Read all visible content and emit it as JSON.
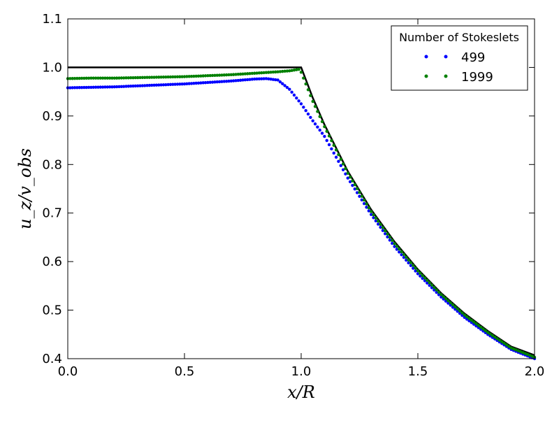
{
  "chart_data": {
    "type": "scatter",
    "title": "",
    "xlabel": "x/R",
    "ylabel": "u_z/v_obs",
    "xlim": [
      0.0,
      2.0
    ],
    "ylim": [
      0.4,
      1.1
    ],
    "grid": false,
    "x_ticks": [
      "0.0",
      "0.5",
      "1.0",
      "1.5",
      "2.0"
    ],
    "y_ticks": [
      "0.4",
      "0.5",
      "0.6",
      "0.7",
      "0.8",
      "0.9",
      "1.0",
      "1.1"
    ],
    "legend": {
      "title": "Number of Stokeslets",
      "placement": "top-right",
      "entries": [
        "499",
        "1999"
      ]
    },
    "reference_curve": {
      "description": "",
      "color": "#000000",
      "x": [
        0.0,
        0.1,
        0.2,
        0.3,
        0.4,
        0.5,
        0.6,
        0.7,
        0.8,
        0.9,
        1.0,
        1.05,
        1.1,
        1.2,
        1.3,
        1.4,
        1.5,
        1.6,
        1.7,
        1.8,
        1.9,
        2.0
      ],
      "y": [
        1.0,
        1.0,
        1.0,
        1.0,
        1.0,
        1.0,
        1.0,
        1.0,
        1.0,
        1.0,
        1.0,
        0.937,
        0.882,
        0.786,
        0.707,
        0.641,
        0.584,
        0.535,
        0.493,
        0.457,
        0.425,
        0.407
      ]
    },
    "series": [
      {
        "name": "499",
        "color": "#0000ff",
        "x": [
          0.0,
          0.1,
          0.2,
          0.3,
          0.4,
          0.5,
          0.6,
          0.7,
          0.8,
          0.85,
          0.9,
          0.95,
          1.0,
          1.05,
          1.1,
          1.2,
          1.3,
          1.4,
          1.5,
          1.6,
          1.7,
          1.8,
          1.9,
          2.0
        ],
        "y": [
          0.958,
          0.959,
          0.96,
          0.962,
          0.964,
          0.966,
          0.969,
          0.972,
          0.976,
          0.977,
          0.974,
          0.955,
          0.925,
          0.89,
          0.858,
          0.772,
          0.697,
          0.631,
          0.575,
          0.527,
          0.485,
          0.45,
          0.419,
          0.4
        ]
      },
      {
        "name": "1999",
        "color": "#008000",
        "x": [
          0.0,
          0.1,
          0.2,
          0.3,
          0.4,
          0.5,
          0.6,
          0.7,
          0.8,
          0.9,
          0.95,
          0.99,
          1.0,
          1.05,
          1.1,
          1.2,
          1.3,
          1.4,
          1.5,
          1.6,
          1.7,
          1.8,
          1.9,
          2.0
        ],
        "y": [
          0.977,
          0.978,
          0.978,
          0.979,
          0.98,
          0.981,
          0.983,
          0.985,
          0.988,
          0.991,
          0.993,
          0.996,
          0.99,
          0.93,
          0.878,
          0.782,
          0.703,
          0.637,
          0.581,
          0.532,
          0.49,
          0.454,
          0.422,
          0.403
        ]
      }
    ]
  }
}
